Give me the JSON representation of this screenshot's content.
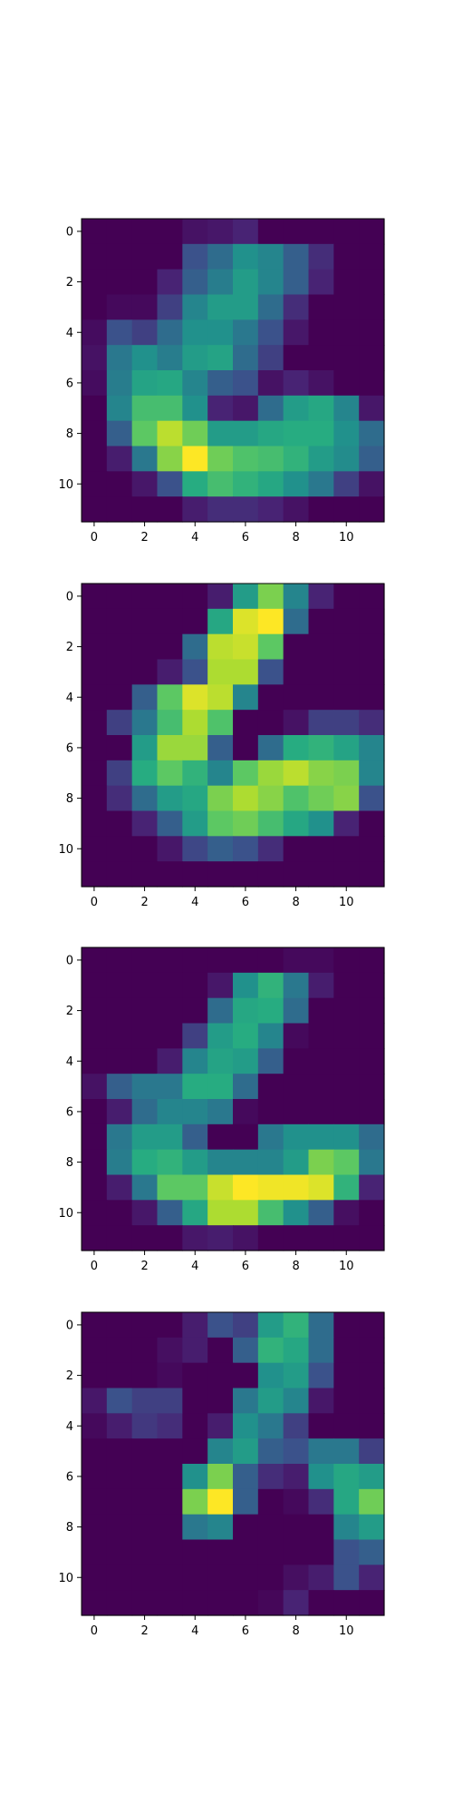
{
  "chart_data": [
    {
      "type": "heatmap",
      "colormap": "viridis",
      "x_ticks": [
        "0",
        "2",
        "4",
        "6",
        "8",
        "10"
      ],
      "y_ticks": [
        "0",
        "2",
        "4",
        "6",
        "8",
        "10"
      ],
      "xlim": [
        -0.5,
        11.5
      ],
      "ylim": [
        11.5,
        -0.5
      ],
      "values": [
        [
          0.0,
          0.0,
          0.0,
          0.0,
          0.06,
          0.08,
          0.12,
          0.0,
          0.0,
          0.0,
          0.0,
          0.0
        ],
        [
          0.0,
          0.0,
          0.0,
          0.0,
          0.25,
          0.35,
          0.5,
          0.45,
          0.3,
          0.15,
          0.0,
          0.0
        ],
        [
          0.0,
          0.0,
          0.0,
          0.12,
          0.3,
          0.42,
          0.55,
          0.45,
          0.3,
          0.12,
          0.0,
          0.0
        ],
        [
          0.0,
          0.03,
          0.03,
          0.2,
          0.45,
          0.55,
          0.55,
          0.35,
          0.15,
          0.0,
          0.0,
          0.0
        ],
        [
          0.04,
          0.25,
          0.2,
          0.35,
          0.5,
          0.5,
          0.4,
          0.25,
          0.08,
          0.0,
          0.0,
          0.0
        ],
        [
          0.06,
          0.4,
          0.5,
          0.42,
          0.55,
          0.58,
          0.35,
          0.2,
          0.0,
          0.0,
          0.0,
          0.0
        ],
        [
          0.04,
          0.42,
          0.58,
          0.6,
          0.45,
          0.3,
          0.25,
          0.06,
          0.12,
          0.06,
          0.0,
          0.0
        ],
        [
          0.0,
          0.45,
          0.7,
          0.7,
          0.5,
          0.12,
          0.08,
          0.35,
          0.55,
          0.6,
          0.45,
          0.08
        ],
        [
          0.0,
          0.3,
          0.75,
          0.9,
          0.78,
          0.55,
          0.55,
          0.6,
          0.62,
          0.62,
          0.5,
          0.35
        ],
        [
          0.0,
          0.1,
          0.4,
          0.82,
          1.0,
          0.78,
          0.72,
          0.7,
          0.65,
          0.55,
          0.48,
          0.3
        ],
        [
          0.0,
          0.0,
          0.08,
          0.25,
          0.62,
          0.7,
          0.65,
          0.6,
          0.5,
          0.4,
          0.2,
          0.06
        ],
        [
          0.0,
          0.0,
          0.0,
          0.0,
          0.1,
          0.15,
          0.15,
          0.12,
          0.06,
          0.0,
          0.0,
          0.0
        ]
      ]
    },
    {
      "type": "heatmap",
      "colormap": "viridis",
      "x_ticks": [
        "0",
        "2",
        "4",
        "6",
        "8",
        "10"
      ],
      "y_ticks": [
        "0",
        "2",
        "4",
        "6",
        "8",
        "10"
      ],
      "xlim": [
        -0.5,
        11.5
      ],
      "ylim": [
        11.5,
        -0.5
      ],
      "values": [
        [
          0.0,
          0.0,
          0.0,
          0.0,
          0.0,
          0.1,
          0.55,
          0.8,
          0.45,
          0.12,
          0.0,
          0.0
        ],
        [
          0.0,
          0.0,
          0.0,
          0.0,
          0.0,
          0.6,
          0.95,
          1.0,
          0.35,
          0.0,
          0.0,
          0.0
        ],
        [
          0.0,
          0.0,
          0.0,
          0.0,
          0.35,
          0.9,
          0.92,
          0.75,
          0.0,
          0.0,
          0.0,
          0.0
        ],
        [
          0.0,
          0.0,
          0.0,
          0.1,
          0.25,
          0.88,
          0.88,
          0.25,
          0.0,
          0.0,
          0.0,
          0.0
        ],
        [
          0.0,
          0.0,
          0.3,
          0.75,
          0.95,
          0.9,
          0.45,
          0.0,
          0.0,
          0.0,
          0.0,
          0.0
        ],
        [
          0.0,
          0.2,
          0.4,
          0.7,
          0.88,
          0.72,
          0.0,
          0.0,
          0.06,
          0.2,
          0.2,
          0.15
        ],
        [
          0.0,
          0.0,
          0.55,
          0.85,
          0.85,
          0.3,
          0.0,
          0.35,
          0.62,
          0.65,
          0.58,
          0.45
        ],
        [
          0.0,
          0.2,
          0.62,
          0.75,
          0.65,
          0.45,
          0.75,
          0.85,
          0.9,
          0.82,
          0.8,
          0.45
        ],
        [
          0.0,
          0.15,
          0.35,
          0.55,
          0.6,
          0.8,
          0.88,
          0.82,
          0.72,
          0.78,
          0.82,
          0.25
        ],
        [
          0.0,
          0.0,
          0.12,
          0.3,
          0.55,
          0.75,
          0.78,
          0.7,
          0.6,
          0.5,
          0.12,
          0.0
        ],
        [
          0.0,
          0.0,
          0.0,
          0.08,
          0.22,
          0.3,
          0.25,
          0.15,
          0.0,
          0.0,
          0.0,
          0.0
        ],
        [
          0.0,
          0.0,
          0.0,
          0.0,
          0.0,
          0.0,
          0.0,
          0.0,
          0.0,
          0.0,
          0.0,
          0.0
        ]
      ]
    },
    {
      "type": "heatmap",
      "colormap": "viridis",
      "x_ticks": [
        "0",
        "2",
        "4",
        "6",
        "8",
        "10"
      ],
      "y_ticks": [
        "0",
        "2",
        "4",
        "6",
        "8",
        "10"
      ],
      "xlim": [
        -0.5,
        11.5
      ],
      "ylim": [
        11.5,
        -0.5
      ],
      "values": [
        [
          0.0,
          0.0,
          0.0,
          0.0,
          0.0,
          0.0,
          0.0,
          0.0,
          0.03,
          0.03,
          0.0,
          0.0
        ],
        [
          0.0,
          0.0,
          0.0,
          0.0,
          0.0,
          0.08,
          0.5,
          0.65,
          0.4,
          0.1,
          0.0,
          0.0
        ],
        [
          0.0,
          0.0,
          0.0,
          0.0,
          0.0,
          0.35,
          0.6,
          0.62,
          0.35,
          0.0,
          0.0,
          0.0
        ],
        [
          0.0,
          0.0,
          0.0,
          0.0,
          0.2,
          0.55,
          0.62,
          0.45,
          0.03,
          0.0,
          0.0,
          0.0
        ],
        [
          0.0,
          0.0,
          0.0,
          0.1,
          0.45,
          0.58,
          0.55,
          0.3,
          0.0,
          0.0,
          0.0,
          0.0
        ],
        [
          0.06,
          0.3,
          0.4,
          0.4,
          0.62,
          0.62,
          0.35,
          0.0,
          0.0,
          0.0,
          0.0,
          0.0
        ],
        [
          0.0,
          0.1,
          0.35,
          0.45,
          0.45,
          0.4,
          0.03,
          0.0,
          0.0,
          0.0,
          0.0,
          0.0
        ],
        [
          0.0,
          0.4,
          0.55,
          0.55,
          0.3,
          0.0,
          0.0,
          0.4,
          0.5,
          0.5,
          0.5,
          0.35
        ],
        [
          0.0,
          0.42,
          0.62,
          0.65,
          0.55,
          0.45,
          0.45,
          0.45,
          0.55,
          0.8,
          0.75,
          0.4
        ],
        [
          0.0,
          0.1,
          0.4,
          0.75,
          0.75,
          0.92,
          1.0,
          0.98,
          0.98,
          0.95,
          0.65,
          0.12
        ],
        [
          0.0,
          0.0,
          0.08,
          0.3,
          0.6,
          0.88,
          0.88,
          0.7,
          0.5,
          0.3,
          0.05,
          0.0
        ],
        [
          0.0,
          0.0,
          0.0,
          0.0,
          0.08,
          0.1,
          0.06,
          0.0,
          0.0,
          0.0,
          0.0,
          0.0
        ]
      ]
    },
    {
      "type": "heatmap",
      "colormap": "viridis",
      "x_ticks": [
        "0",
        "2",
        "4",
        "6",
        "8",
        "10"
      ],
      "y_ticks": [
        "0",
        "2",
        "4",
        "6",
        "8",
        "10"
      ],
      "xlim": [
        -0.5,
        11.5
      ],
      "ylim": [
        11.5,
        -0.5
      ],
      "values": [
        [
          0.0,
          0.0,
          0.0,
          0.0,
          0.1,
          0.25,
          0.2,
          0.55,
          0.65,
          0.35,
          0.0,
          0.0
        ],
        [
          0.0,
          0.0,
          0.0,
          0.05,
          0.1,
          0.0,
          0.3,
          0.65,
          0.6,
          0.35,
          0.0,
          0.0
        ],
        [
          0.0,
          0.0,
          0.0,
          0.03,
          0.0,
          0.0,
          0.0,
          0.5,
          0.55,
          0.25,
          0.0,
          0.0
        ],
        [
          0.08,
          0.25,
          0.2,
          0.2,
          0.0,
          0.0,
          0.4,
          0.55,
          0.45,
          0.08,
          0.0,
          0.0
        ],
        [
          0.03,
          0.1,
          0.18,
          0.15,
          0.0,
          0.1,
          0.5,
          0.4,
          0.2,
          0.0,
          0.0,
          0.0
        ],
        [
          0.0,
          0.0,
          0.0,
          0.0,
          0.0,
          0.45,
          0.55,
          0.3,
          0.25,
          0.4,
          0.4,
          0.2
        ],
        [
          0.0,
          0.0,
          0.0,
          0.0,
          0.5,
          0.8,
          0.3,
          0.15,
          0.1,
          0.5,
          0.6,
          0.55
        ],
        [
          0.0,
          0.0,
          0.0,
          0.0,
          0.8,
          1.0,
          0.3,
          0.0,
          0.03,
          0.15,
          0.6,
          0.78
        ],
        [
          0.0,
          0.0,
          0.0,
          0.0,
          0.4,
          0.45,
          0.0,
          0.0,
          0.0,
          0.0,
          0.45,
          0.55
        ],
        [
          0.0,
          0.0,
          0.0,
          0.0,
          0.0,
          0.0,
          0.0,
          0.0,
          0.0,
          0.0,
          0.25,
          0.3
        ],
        [
          0.0,
          0.0,
          0.0,
          0.0,
          0.0,
          0.0,
          0.0,
          0.0,
          0.05,
          0.1,
          0.25,
          0.12
        ],
        [
          0.0,
          0.0,
          0.0,
          0.0,
          0.0,
          0.0,
          0.0,
          0.02,
          0.12,
          0.0,
          0.0,
          0.0
        ]
      ]
    }
  ]
}
